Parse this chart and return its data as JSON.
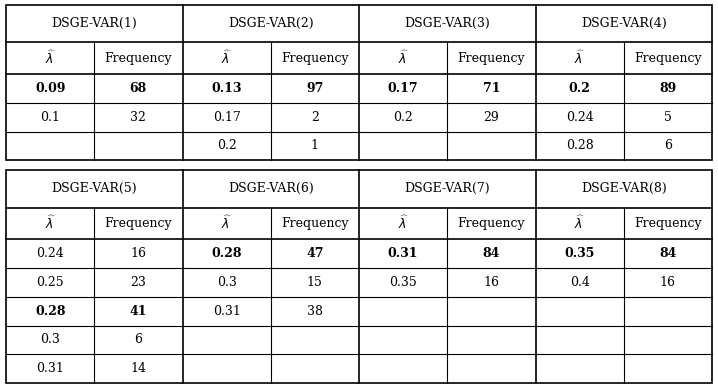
{
  "top_table": {
    "sections": [
      {
        "header": "DSGE-VAR(1)",
        "rows": [
          {
            "lambda": "0.09",
            "freq": "68",
            "bold": true
          },
          {
            "lambda": "0.1",
            "freq": "32",
            "bold": false
          },
          {
            "lambda": "",
            "freq": "",
            "bold": false
          }
        ]
      },
      {
        "header": "DSGE-VAR(2)",
        "rows": [
          {
            "lambda": "0.13",
            "freq": "97",
            "bold": true
          },
          {
            "lambda": "0.17",
            "freq": "2",
            "bold": false
          },
          {
            "lambda": "0.2",
            "freq": "1",
            "bold": false
          }
        ]
      },
      {
        "header": "DSGE-VAR(3)",
        "rows": [
          {
            "lambda": "0.17",
            "freq": "71",
            "bold": true
          },
          {
            "lambda": "0.2",
            "freq": "29",
            "bold": false
          },
          {
            "lambda": "",
            "freq": "",
            "bold": false
          }
        ]
      },
      {
        "header": "DSGE-VAR(4)",
        "rows": [
          {
            "lambda": "0.2",
            "freq": "89",
            "bold": true
          },
          {
            "lambda": "0.24",
            "freq": "5",
            "bold": false
          },
          {
            "lambda": "0.28",
            "freq": "6",
            "bold": false
          }
        ]
      }
    ]
  },
  "bottom_table": {
    "sections": [
      {
        "header": "DSGE-VAR(5)",
        "rows": [
          {
            "lambda": "0.24",
            "freq": "16",
            "bold": false
          },
          {
            "lambda": "0.25",
            "freq": "23",
            "bold": false
          },
          {
            "lambda": "0.28",
            "freq": "41",
            "bold": true
          },
          {
            "lambda": "0.3",
            "freq": "6",
            "bold": false
          },
          {
            "lambda": "0.31",
            "freq": "14",
            "bold": false
          }
        ]
      },
      {
        "header": "DSGE-VAR(6)",
        "rows": [
          {
            "lambda": "0.28",
            "freq": "47",
            "bold": true
          },
          {
            "lambda": "0.3",
            "freq": "15",
            "bold": false
          },
          {
            "lambda": "0.31",
            "freq": "38",
            "bold": false
          },
          {
            "lambda": "",
            "freq": "",
            "bold": false
          },
          {
            "lambda": "",
            "freq": "",
            "bold": false
          }
        ]
      },
      {
        "header": "DSGE-VAR(7)",
        "rows": [
          {
            "lambda": "0.31",
            "freq": "84",
            "bold": true
          },
          {
            "lambda": "0.35",
            "freq": "16",
            "bold": false
          },
          {
            "lambda": "",
            "freq": "",
            "bold": false
          },
          {
            "lambda": "",
            "freq": "",
            "bold": false
          },
          {
            "lambda": "",
            "freq": "",
            "bold": false
          }
        ]
      },
      {
        "header": "DSGE-VAR(8)",
        "rows": [
          {
            "lambda": "0.35",
            "freq": "84",
            "bold": true
          },
          {
            "lambda": "0.4",
            "freq": "16",
            "bold": false
          },
          {
            "lambda": "",
            "freq": "",
            "bold": false
          },
          {
            "lambda": "",
            "freq": "",
            "bold": false
          },
          {
            "lambda": "",
            "freq": "",
            "bold": false
          }
        ]
      }
    ]
  },
  "font_size": 9.0,
  "bg_color": "#ffffff"
}
